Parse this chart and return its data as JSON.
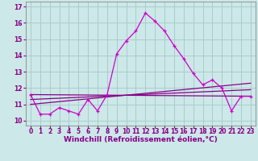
{
  "xlabel": "Windchill (Refroidissement éolien,°C)",
  "ylabel": "",
  "background_color": "#cce8e8",
  "line_color": "#cc00cc",
  "line_color2": "#880088",
  "xlim": [
    -0.5,
    23.5
  ],
  "ylim": [
    9.7,
    17.3
  ],
  "yticks": [
    10,
    11,
    12,
    13,
    14,
    15,
    16,
    17
  ],
  "xticks": [
    0,
    1,
    2,
    3,
    4,
    5,
    6,
    7,
    8,
    9,
    10,
    11,
    12,
    13,
    14,
    15,
    16,
    17,
    18,
    19,
    20,
    21,
    22,
    23
  ],
  "series1_x": [
    0,
    1,
    2,
    3,
    4,
    5,
    6,
    7,
    8,
    9,
    10,
    11,
    12,
    13,
    14,
    15,
    16,
    17,
    18,
    19,
    20,
    21,
    22,
    23
  ],
  "series1_y": [
    11.6,
    10.4,
    10.4,
    10.8,
    10.6,
    10.4,
    11.3,
    10.6,
    11.6,
    14.1,
    14.9,
    15.5,
    16.6,
    16.1,
    15.5,
    14.6,
    13.8,
    12.9,
    12.2,
    12.5,
    12.0,
    10.6,
    11.5,
    11.5
  ],
  "series2_x": [
    0,
    23
  ],
  "series2_y": [
    11.6,
    11.5
  ],
  "series3_x": [
    0,
    23
  ],
  "series3_y": [
    11.3,
    11.9
  ],
  "series4_x": [
    0,
    23
  ],
  "series4_y": [
    11.0,
    12.3
  ],
  "grid_color": "#aacccc",
  "tick_fontsize": 5.5,
  "xlabel_fontsize": 6.5
}
